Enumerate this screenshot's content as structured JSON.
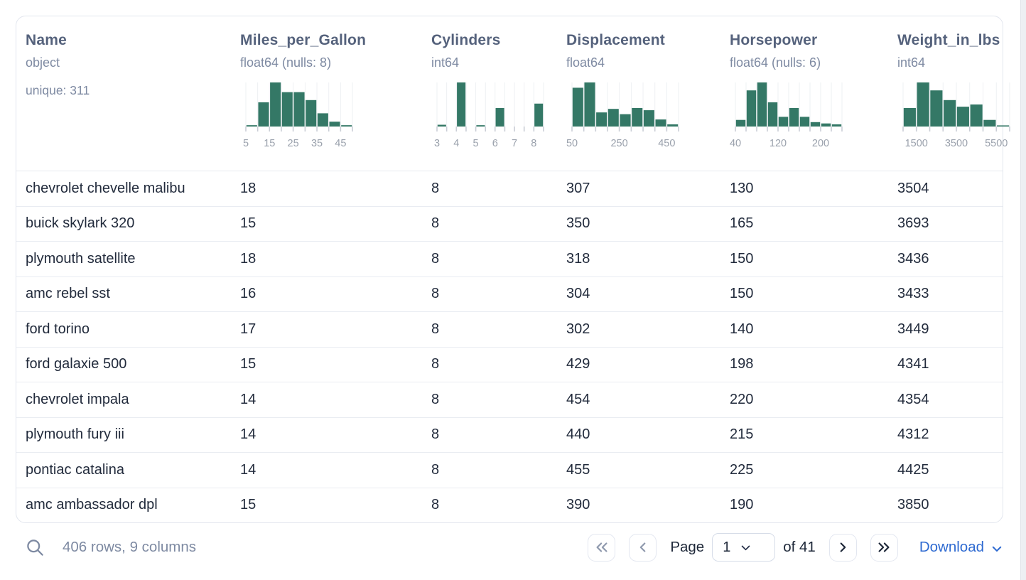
{
  "colors": {
    "bar_green": "#347866",
    "grid_line": "#eef0f3",
    "tick": "#c9cdd5",
    "tick_label": "#9aa1ac",
    "link_blue": "#2e6ad1"
  },
  "table": {
    "columns": [
      {
        "name": "Name",
        "type": "object",
        "extra": "unique: 311",
        "histogram": null
      },
      {
        "name": "Miles_per_Gallon",
        "type": "float64 (nulls: 8)",
        "histogram": {
          "type": "bar",
          "bars": [
            [
              0,
              0.111,
              0.03
            ],
            [
              0.111,
              0.222,
              0.55
            ],
            [
              0.222,
              0.333,
              1.0
            ],
            [
              0.333,
              0.444,
              0.78
            ],
            [
              0.444,
              0.556,
              0.78
            ],
            [
              0.556,
              0.667,
              0.6
            ],
            [
              0.667,
              0.778,
              0.3
            ],
            [
              0.778,
              0.889,
              0.11
            ],
            [
              0.889,
              1,
              0.03
            ]
          ],
          "ticks": [
            0,
            0.111,
            0.222,
            0.333,
            0.444,
            0.556,
            0.667,
            0.778,
            0.889,
            1
          ],
          "labels": [
            [
              0,
              "5"
            ],
            [
              0.222,
              "15"
            ],
            [
              0.444,
              "25"
            ],
            [
              0.667,
              "35"
            ],
            [
              0.889,
              "45"
            ]
          ]
        }
      },
      {
        "name": "Cylinders",
        "type": "int64",
        "histogram": {
          "type": "bar",
          "bars": [
            [
              0,
              0.091,
              0.04
            ],
            [
              0.182,
              0.273,
              1.0
            ],
            [
              0.364,
              0.455,
              0.03
            ],
            [
              0.545,
              0.636,
              0.42
            ],
            [
              0.909,
              1,
              0.52
            ]
          ],
          "ticks": [
            0,
            0.091,
            0.182,
            0.273,
            0.364,
            0.455,
            0.545,
            0.636,
            0.727,
            0.818,
            0.909,
            1
          ],
          "labels": [
            [
              0,
              "3"
            ],
            [
              0.182,
              "4"
            ],
            [
              0.364,
              "5"
            ],
            [
              0.545,
              "6"
            ],
            [
              0.727,
              "7"
            ],
            [
              0.909,
              "8"
            ]
          ]
        }
      },
      {
        "name": "Displacement",
        "type": "float64",
        "histogram": {
          "type": "bar",
          "bars": [
            [
              0,
              0.111,
              0.88
            ],
            [
              0.111,
              0.222,
              1.0
            ],
            [
              0.222,
              0.333,
              0.32
            ],
            [
              0.333,
              0.444,
              0.4
            ],
            [
              0.444,
              0.556,
              0.28
            ],
            [
              0.556,
              0.667,
              0.42
            ],
            [
              0.667,
              0.778,
              0.37
            ],
            [
              0.778,
              0.889,
              0.16
            ],
            [
              0.889,
              1,
              0.05
            ]
          ],
          "ticks": [
            0,
            0.111,
            0.222,
            0.333,
            0.444,
            0.556,
            0.667,
            0.778,
            0.889,
            1
          ],
          "labels": [
            [
              0,
              "50"
            ],
            [
              0.444,
              "250"
            ],
            [
              0.889,
              "450"
            ]
          ]
        }
      },
      {
        "name": "Horsepower",
        "type": "float64 (nulls: 6)",
        "histogram": {
          "type": "bar",
          "bars": [
            [
              0,
              0.1,
              0.15
            ],
            [
              0.1,
              0.2,
              0.82
            ],
            [
              0.2,
              0.3,
              1.0
            ],
            [
              0.3,
              0.4,
              0.55
            ],
            [
              0.4,
              0.5,
              0.22
            ],
            [
              0.5,
              0.6,
              0.42
            ],
            [
              0.6,
              0.7,
              0.22
            ],
            [
              0.7,
              0.8,
              0.1
            ],
            [
              0.8,
              0.9,
              0.07
            ],
            [
              0.9,
              1,
              0.05
            ]
          ],
          "ticks": [
            0,
            0.1,
            0.2,
            0.3,
            0.4,
            0.5,
            0.6,
            0.7,
            0.8,
            0.9,
            1
          ],
          "labels": [
            [
              0,
              "40"
            ],
            [
              0.4,
              "120"
            ],
            [
              0.8,
              "200"
            ]
          ]
        }
      },
      {
        "name": "Weight_in_lbs",
        "type": "int64",
        "histogram": {
          "type": "bar",
          "bars": [
            [
              0,
              0.125,
              0.42
            ],
            [
              0.125,
              0.25,
              1.0
            ],
            [
              0.25,
              0.375,
              0.82
            ],
            [
              0.375,
              0.5,
              0.6
            ],
            [
              0.5,
              0.625,
              0.45
            ],
            [
              0.625,
              0.75,
              0.5
            ],
            [
              0.75,
              0.875,
              0.15
            ],
            [
              0.875,
              1,
              0.02
            ]
          ],
          "ticks": [
            0,
            0.125,
            0.25,
            0.375,
            0.5,
            0.625,
            0.75,
            0.875,
            1
          ],
          "labels": [
            [
              0.125,
              "1500"
            ],
            [
              0.5,
              "3500"
            ],
            [
              0.875,
              "5500"
            ]
          ]
        }
      }
    ],
    "rows": [
      [
        "chevrolet chevelle malibu",
        "18",
        "8",
        "307",
        "130",
        "3504"
      ],
      [
        "buick skylark 320",
        "15",
        "8",
        "350",
        "165",
        "3693"
      ],
      [
        "plymouth satellite",
        "18",
        "8",
        "318",
        "150",
        "3436"
      ],
      [
        "amc rebel sst",
        "16",
        "8",
        "304",
        "150",
        "3433"
      ],
      [
        "ford torino",
        "17",
        "8",
        "302",
        "140",
        "3449"
      ],
      [
        "ford galaxie 500",
        "15",
        "8",
        "429",
        "198",
        "4341"
      ],
      [
        "chevrolet impala",
        "14",
        "8",
        "454",
        "220",
        "4354"
      ],
      [
        "plymouth fury iii",
        "14",
        "8",
        "440",
        "215",
        "4312"
      ],
      [
        "pontiac catalina",
        "14",
        "8",
        "455",
        "225",
        "4425"
      ],
      [
        "amc ambassador dpl",
        "15",
        "8",
        "390",
        "190",
        "3850"
      ]
    ]
  },
  "footer": {
    "summary": "406 rows, 9 columns",
    "page_label": "Page",
    "page_value": "1",
    "of_label": "of 41",
    "download_label": "Download"
  }
}
